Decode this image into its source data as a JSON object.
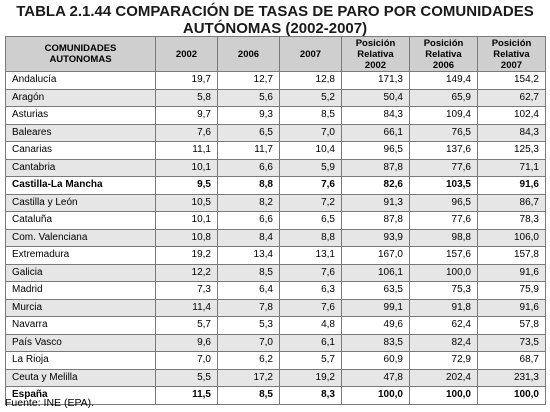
{
  "title_line1": "TABLA 2.1.44 COMPARACIÓN DE TASAS DE PARO POR COMUNIDADES",
  "title_line2": "AUTÓNOMAS (2002-2007)",
  "headers": {
    "c0": [
      "COMUNIDADES",
      "AUTONOMAS"
    ],
    "c1": [
      "2002"
    ],
    "c2": [
      "2006"
    ],
    "c3": [
      "2007"
    ],
    "c4": [
      "Posición",
      "Relativa",
      "2002"
    ],
    "c5": [
      "Posición",
      "Relativa",
      "2006"
    ],
    "c6": [
      "Posición",
      "Relativa",
      "2007"
    ]
  },
  "rows": [
    {
      "name": "Andalucía",
      "v": [
        "19,7",
        "12,7",
        "12,8",
        "171,3",
        "149,4",
        "154,2"
      ]
    },
    {
      "name": "Aragón",
      "v": [
        "5,8",
        "5,6",
        "5,2",
        "50,4",
        "65,9",
        "62,7"
      ]
    },
    {
      "name": "Asturias",
      "v": [
        "9,7",
        "9,3",
        "8,5",
        "84,3",
        "109,4",
        "102,4"
      ]
    },
    {
      "name": "Baleares",
      "v": [
        "7,6",
        "6,5",
        "7,0",
        "66,1",
        "76,5",
        "84,3"
      ]
    },
    {
      "name": "Canarias",
      "v": [
        "11,1",
        "11,7",
        "10,4",
        "96,5",
        "137,6",
        "125,3"
      ]
    },
    {
      "name": "Cantabria",
      "v": [
        "10,1",
        "6,6",
        "5,9",
        "87,8",
        "77,6",
        "71,1"
      ]
    },
    {
      "name": "Castilla-La Mancha",
      "v": [
        "9,5",
        "8,8",
        "7,6",
        "82,6",
        "103,5",
        "91,6"
      ],
      "bold": true
    },
    {
      "name": "Castilla y León",
      "v": [
        "10,5",
        "8,2",
        "7,2",
        "91,3",
        "96,5",
        "86,7"
      ]
    },
    {
      "name": "Cataluña",
      "v": [
        "10,1",
        "6,6",
        "6,5",
        "87,8",
        "77,6",
        "78,3"
      ]
    },
    {
      "name": "Com. Valenciana",
      "v": [
        "10,8",
        "8,4",
        "8,8",
        "93,9",
        "98,8",
        "106,0"
      ]
    },
    {
      "name": "Extremadura",
      "v": [
        "19,2",
        "13,4",
        "13,1",
        "167,0",
        "157,6",
        "157,8"
      ]
    },
    {
      "name": "Galicia",
      "v": [
        "12,2",
        "8,5",
        "7,6",
        "106,1",
        "100,0",
        "91,6"
      ]
    },
    {
      "name": "Madrid",
      "v": [
        "7,3",
        "6,4",
        "6,3",
        "63,5",
        "75,3",
        "75,9"
      ]
    },
    {
      "name": "Murcia",
      "v": [
        "11,4",
        "7,8",
        "7,6",
        "99,1",
        "91,8",
        "91,6"
      ]
    },
    {
      "name": "Navarra",
      "v": [
        "5,7",
        "5,3",
        "4,8",
        "49,6",
        "62,4",
        "57,8"
      ]
    },
    {
      "name": "País Vasco",
      "v": [
        "9,6",
        "7,0",
        "6,1",
        "83,5",
        "82,4",
        "73,5"
      ]
    },
    {
      "name": "La Rioja",
      "v": [
        "7,0",
        "6,2",
        "5,7",
        "60,9",
        "72,9",
        "68,7"
      ]
    },
    {
      "name": "Ceuta y Melilla",
      "v": [
        "5,5",
        "17,2",
        "19,2",
        "47,8",
        "202,4",
        "231,3"
      ]
    },
    {
      "name": "España",
      "v": [
        "11,5",
        "8,5",
        "8,3",
        "100,0",
        "100,0",
        "100,0"
      ],
      "bold": true
    }
  ],
  "source": "Fuente: INE (EPA)."
}
